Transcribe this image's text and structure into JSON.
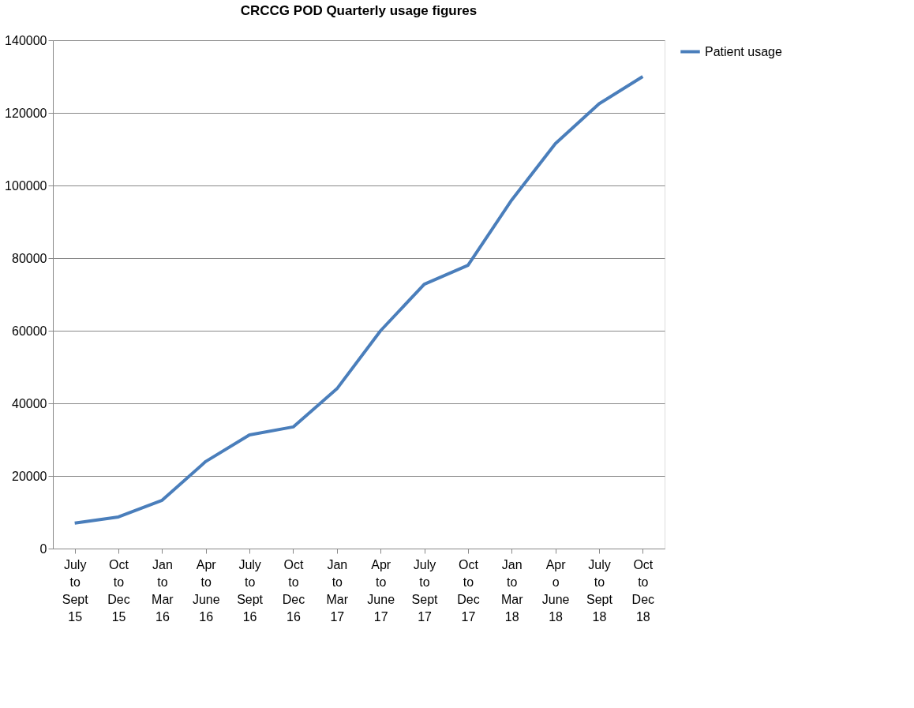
{
  "chart_data": {
    "type": "line",
    "title": "CRCCG POD Quarterly usage figures",
    "categories": [
      "July\nto\nSept\n15",
      "Oct\nto\nDec\n15",
      "Jan\nto\nMar\n16",
      "Apr\nto\nJune\n16",
      "July\nto\nSept\n16",
      "Oct\nto\nDec\n16",
      "Jan\nto\nMar\n17",
      "Apr\nto\nJune\n17",
      "July\nto\nSept\n17",
      "Oct\nto\nDec\n17",
      "Jan\nto\nMar\n18",
      "Apr\no\nJune\n18",
      "July\nto\nSept\n18",
      "Oct\nto\nDec\n18"
    ],
    "series": [
      {
        "name": "Patient usage",
        "color": "#4a7ebb",
        "values": [
          7000,
          8700,
          13300,
          24000,
          31300,
          33500,
          44000,
          60000,
          72800,
          78000,
          96000,
          111500,
          122500,
          130000
        ]
      }
    ],
    "ylim": [
      0,
      140000
    ],
    "yticks": [
      0,
      20000,
      40000,
      60000,
      80000,
      100000,
      120000,
      140000
    ],
    "grid": "y",
    "legend": "right",
    "marker": "none",
    "line_style": "solid"
  }
}
